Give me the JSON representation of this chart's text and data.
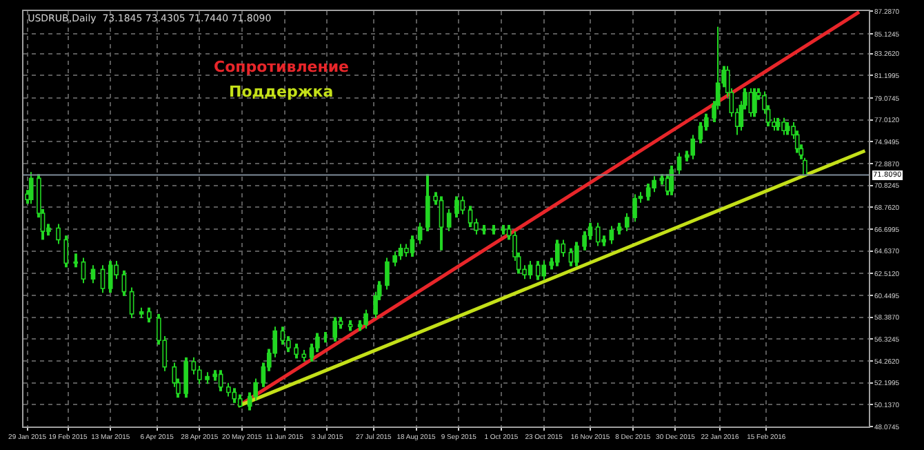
{
  "chart_data": {
    "type": "candlestick",
    "title": "USDRUB,Daily  73.1845 73.4305 71.7440 71.8090",
    "color": "#22d622",
    "legend": false,
    "grid": true,
    "x": [
      "2015-01-29",
      "2015-01-31",
      "2015-02-04",
      "2015-02-06",
      "2015-02-09",
      "2015-02-14",
      "2015-02-18",
      "2015-02-23",
      "2015-02-27",
      "2015-03-04",
      "2015-03-09",
      "2015-03-13",
      "2015-03-16",
      "2015-03-20",
      "2015-03-24",
      "2015-03-29",
      "2015-04-02",
      "2015-04-07",
      "2015-04-10",
      "2015-04-15",
      "2015-04-17",
      "2015-04-21",
      "2015-04-25",
      "2015-04-28",
      "2015-05-02",
      "2015-05-06",
      "2015-05-09",
      "2015-05-13",
      "2015-05-16",
      "2015-05-19",
      "2015-05-24",
      "2015-05-27",
      "2015-05-31",
      "2015-06-03",
      "2015-06-06",
      "2015-06-10",
      "2015-06-13",
      "2015-06-17",
      "2015-06-21",
      "2015-06-25",
      "2015-06-28",
      "2015-07-02",
      "2015-07-07",
      "2015-07-10",
      "2015-07-15",
      "2015-07-20",
      "2015-07-23",
      "2015-07-28",
      "2015-07-30",
      "2015-08-03",
      "2015-08-07",
      "2015-08-10",
      "2015-08-13",
      "2015-08-16",
      "2015-08-20",
      "2015-08-24",
      "2015-08-28",
      "2015-08-31",
      "2015-09-04",
      "2015-09-08",
      "2015-09-11",
      "2015-09-15",
      "2015-09-18",
      "2015-09-22",
      "2015-09-27",
      "2015-10-02",
      "2015-10-05",
      "2015-10-08",
      "2015-10-10",
      "2015-10-13",
      "2015-10-16",
      "2015-10-20",
      "2015-10-23",
      "2015-10-27",
      "2015-10-30",
      "2015-11-02",
      "2015-11-06",
      "2015-11-09",
      "2015-11-13",
      "2015-11-16",
      "2015-11-20",
      "2015-11-23",
      "2015-11-27",
      "2015-12-01",
      "2015-12-05",
      "2015-12-09",
      "2015-12-12",
      "2015-12-16",
      "2015-12-19",
      "2015-12-23",
      "2015-12-26",
      "2015-12-28",
      "2016-01-01",
      "2016-01-05",
      "2016-01-08",
      "2016-01-12",
      "2016-01-15",
      "2016-01-19",
      "2016-01-21",
      "2016-01-24",
      "2016-01-26",
      "2016-01-28",
      "2016-01-31",
      "2016-02-02",
      "2016-02-04",
      "2016-02-07",
      "2016-02-09",
      "2016-02-11",
      "2016-02-14",
      "2016-02-16",
      "2016-02-19",
      "2016-02-21",
      "2016-02-24",
      "2016-02-26",
      "2016-02-29",
      "2016-03-02",
      "2016-03-04",
      "2016-03-06"
    ],
    "ohlc": [
      [
        70.0,
        70.4,
        69.1,
        69.5
      ],
      [
        69.5,
        72.1,
        69.1,
        71.5
      ],
      [
        71.5,
        71.9,
        67.8,
        68.2
      ],
      [
        68.2,
        68.6,
        65.7,
        66.5
      ],
      [
        66.5,
        67.2,
        66.1,
        66.8
      ],
      [
        66.8,
        67.2,
        65.3,
        65.7
      ],
      [
        65.7,
        66.1,
        63.1,
        63.5
      ],
      [
        63.5,
        64.4,
        63.1,
        63.6
      ],
      [
        63.6,
        64.0,
        61.6,
        62.0
      ],
      [
        62.0,
        63.3,
        61.6,
        62.9
      ],
      [
        62.9,
        63.3,
        60.7,
        61.1
      ],
      [
        61.1,
        63.7,
        60.7,
        63.3
      ],
      [
        63.3,
        63.7,
        62.0,
        62.4
      ],
      [
        62.4,
        62.8,
        60.4,
        60.8
      ],
      [
        60.8,
        61.2,
        58.3,
        58.7
      ],
      [
        58.7,
        59.3,
        58.3,
        58.9
      ],
      [
        58.9,
        59.3,
        57.9,
        58.3
      ],
      [
        58.3,
        58.7,
        55.8,
        56.2
      ],
      [
        56.2,
        56.6,
        53.3,
        53.7
      ],
      [
        53.7,
        54.1,
        51.8,
        52.2
      ],
      [
        52.2,
        52.6,
        50.8,
        51.2
      ],
      [
        51.2,
        54.6,
        50.8,
        54.2
      ],
      [
        54.2,
        54.6,
        53.0,
        53.4
      ],
      [
        53.4,
        53.8,
        52.1,
        52.5
      ],
      [
        52.5,
        53.2,
        52.1,
        52.8
      ],
      [
        52.8,
        53.4,
        52.4,
        53.0
      ],
      [
        53.0,
        53.4,
        51.4,
        51.8
      ],
      [
        51.8,
        52.2,
        50.9,
        51.3
      ],
      [
        51.3,
        51.7,
        50.3,
        50.7
      ],
      [
        50.7,
        51.1,
        49.9,
        50.0
      ],
      [
        50.0,
        51.3,
        49.6,
        50.9
      ],
      [
        50.9,
        52.6,
        50.5,
        52.2
      ],
      [
        52.2,
        54.1,
        51.8,
        53.7
      ],
      [
        53.7,
        55.4,
        53.3,
        55.0
      ],
      [
        55.0,
        57.5,
        54.6,
        57.1
      ],
      [
        57.1,
        57.5,
        55.8,
        56.2
      ],
      [
        56.2,
        56.6,
        55.1,
        55.5
      ],
      [
        55.5,
        55.9,
        54.5,
        54.9
      ],
      [
        54.9,
        55.3,
        54.2,
        54.6
      ],
      [
        54.6,
        55.9,
        54.2,
        55.5
      ],
      [
        55.5,
        56.9,
        55.1,
        56.5
      ],
      [
        56.5,
        57.0,
        56.0,
        56.5
      ],
      [
        56.5,
        58.4,
        56.1,
        58.0
      ],
      [
        58.0,
        58.4,
        57.3,
        57.7
      ],
      [
        57.7,
        58.1,
        57.1,
        57.5
      ],
      [
        57.5,
        58.1,
        57.1,
        57.7
      ],
      [
        57.7,
        59.1,
        57.3,
        58.7
      ],
      [
        58.7,
        60.8,
        58.3,
        60.4
      ],
      [
        60.4,
        61.8,
        60.0,
        61.4
      ],
      [
        61.4,
        64.0,
        61.0,
        63.6
      ],
      [
        63.6,
        64.6,
        63.2,
        64.2
      ],
      [
        64.2,
        65.3,
        63.8,
        64.9
      ],
      [
        64.9,
        65.3,
        64.1,
        64.5
      ],
      [
        64.5,
        66.1,
        64.1,
        65.7
      ],
      [
        65.7,
        67.3,
        65.3,
        66.9
      ],
      [
        66.9,
        71.9,
        66.5,
        69.8
      ],
      [
        69.8,
        70.2,
        69.0,
        69.4
      ],
      [
        69.4,
        69.8,
        64.7,
        66.9
      ],
      [
        66.9,
        68.6,
        66.5,
        68.2
      ],
      [
        68.2,
        69.8,
        67.8,
        69.4
      ],
      [
        69.4,
        69.8,
        68.1,
        68.5
      ],
      [
        68.5,
        68.9,
        66.9,
        67.3
      ],
      [
        67.3,
        67.7,
        66.2,
        66.6
      ],
      [
        66.6,
        67.1,
        66.2,
        66.7
      ],
      [
        66.7,
        67.1,
        66.2,
        66.6
      ],
      [
        66.6,
        67.1,
        66.2,
        66.7
      ],
      [
        66.7,
        67.1,
        65.7,
        66.1
      ],
      [
        66.1,
        66.5,
        63.7,
        64.1
      ],
      [
        64.1,
        64.5,
        62.5,
        62.9
      ],
      [
        62.9,
        63.3,
        62.0,
        62.4
      ],
      [
        62.4,
        63.7,
        62.0,
        63.3
      ],
      [
        63.3,
        63.7,
        61.9,
        62.3
      ],
      [
        62.3,
        63.7,
        61.9,
        63.3
      ],
      [
        63.3,
        64.0,
        62.9,
        63.6
      ],
      [
        63.6,
        65.7,
        63.2,
        65.3
      ],
      [
        65.3,
        65.7,
        64.1,
        64.5
      ],
      [
        64.5,
        64.9,
        63.2,
        63.6
      ],
      [
        63.6,
        65.5,
        63.2,
        65.1
      ],
      [
        65.1,
        66.5,
        64.7,
        66.1
      ],
      [
        66.1,
        67.3,
        65.7,
        66.9
      ],
      [
        66.9,
        67.3,
        65.1,
        65.5
      ],
      [
        65.5,
        66.1,
        65.1,
        65.7
      ],
      [
        65.7,
        67.0,
        65.3,
        66.6
      ],
      [
        66.6,
        67.3,
        66.2,
        66.9
      ],
      [
        66.9,
        68.2,
        66.5,
        67.8
      ],
      [
        67.8,
        70.0,
        67.4,
        69.6
      ],
      [
        69.6,
        70.2,
        69.2,
        69.8
      ],
      [
        69.8,
        71.0,
        69.4,
        70.6
      ],
      [
        70.6,
        71.7,
        70.2,
        71.3
      ],
      [
        71.3,
        71.9,
        70.9,
        71.5
      ],
      [
        71.5,
        71.9,
        69.9,
        70.3
      ],
      [
        70.3,
        72.7,
        69.9,
        72.3
      ],
      [
        72.3,
        73.9,
        71.9,
        73.5
      ],
      [
        73.5,
        74.1,
        73.1,
        73.7
      ],
      [
        73.7,
        75.6,
        73.3,
        75.2
      ],
      [
        75.2,
        76.8,
        74.8,
        76.4
      ],
      [
        76.4,
        77.6,
        76.0,
        77.2
      ],
      [
        77.2,
        78.8,
        76.8,
        78.4
      ],
      [
        78.4,
        85.8,
        78.0,
        80.5
      ],
      [
        80.5,
        82.1,
        80.1,
        81.7
      ],
      [
        81.7,
        82.1,
        79.2,
        79.6
      ],
      [
        79.6,
        80.0,
        77.3,
        77.7
      ],
      [
        77.7,
        78.1,
        75.6,
        76.4
      ],
      [
        76.4,
        78.8,
        76.0,
        78.4
      ],
      [
        78.4,
        80.0,
        78.0,
        79.6
      ],
      [
        79.6,
        80.0,
        77.3,
        77.7
      ],
      [
        77.7,
        80.0,
        77.3,
        79.6
      ],
      [
        79.6,
        80.0,
        78.9,
        79.3
      ],
      [
        79.3,
        79.7,
        77.6,
        78.0
      ],
      [
        78.0,
        78.4,
        76.4,
        76.8
      ],
      [
        76.8,
        77.2,
        76.0,
        76.4
      ],
      [
        76.4,
        77.2,
        76.0,
        76.8
      ],
      [
        76.8,
        77.2,
        75.6,
        76.0
      ],
      [
        76.0,
        76.8,
        75.6,
        76.4
      ],
      [
        76.4,
        76.8,
        75.2,
        75.6
      ],
      [
        75.6,
        76.0,
        73.9,
        74.3
      ],
      [
        74.3,
        74.7,
        73.3,
        73.7
      ],
      [
        73.1845,
        73.4305,
        71.744,
        71.809
      ]
    ],
    "series": [
      {
        "type": "line",
        "name": "Сопротивление",
        "color": "#e8262a",
        "x": [
          "2015-05-18",
          "2016-04-03"
        ],
        "values": [
          50.0,
          87.2
        ]
      },
      {
        "type": "line",
        "name": "Поддержка",
        "color": "#c4e019",
        "x": [
          "2015-05-18",
          "2016-04-06"
        ],
        "values": [
          50.0,
          74.1
        ]
      }
    ],
    "ref_lines": [
      {
        "axis": "y",
        "value": 71.809,
        "label": "71.8090",
        "color": "#7f8c99"
      }
    ],
    "xlim": [
      "2015-01-27",
      "2016-04-08"
    ],
    "xticks": [
      {
        "value": "2015-01-29",
        "label": "29 Jan 2015"
      },
      {
        "value": "2015-02-19",
        "label": "19 Feb 2015"
      },
      {
        "value": "2015-03-13",
        "label": "13 Mar 2015"
      },
      {
        "value": "2015-04-06",
        "label": "6 Apr 2015"
      },
      {
        "value": "2015-04-28",
        "label": "28 Apr 2015"
      },
      {
        "value": "2015-05-20",
        "label": "20 May 2015"
      },
      {
        "value": "2015-06-11",
        "label": "11 Jun 2015"
      },
      {
        "value": "2015-07-03",
        "label": "3 Jul 2015"
      },
      {
        "value": "2015-07-27",
        "label": "27 Jul 2015"
      },
      {
        "value": "2015-08-18",
        "label": "18 Aug 2015"
      },
      {
        "value": "2015-09-09",
        "label": "9 Sep 2015"
      },
      {
        "value": "2015-10-01",
        "label": "1 Oct 2015"
      },
      {
        "value": "2015-10-23",
        "label": "23 Oct 2015"
      },
      {
        "value": "2015-11-16",
        "label": "16 Nov 2015"
      },
      {
        "value": "2015-12-08",
        "label": "8 Dec 2015"
      },
      {
        "value": "2015-12-30",
        "label": "30 Dec 2015"
      },
      {
        "value": "2016-01-22",
        "label": "22 Jan 2016"
      },
      {
        "value": "2016-02-15",
        "label": "15 Feb 2016"
      }
    ],
    "ylim": [
      48.0745,
      87.287
    ],
    "yticks": [
      {
        "value": 87.287,
        "label": "87.2870"
      },
      85.1245,
      {
        "value": 83.262,
        "label": "83.2620"
      },
      81.1995,
      79.0745,
      {
        "value": 77.012,
        "label": "77.0120"
      },
      74.9495,
      {
        "value": 72.887,
        "label": "72.8870"
      },
      70.8245,
      {
        "value": 68.762,
        "label": "68.7620"
      },
      66.6995,
      {
        "value": 64.637,
        "label": "64.6370"
      },
      {
        "value": 62.512,
        "label": "62.5120"
      },
      60.4495,
      {
        "value": 58.387,
        "label": "58.3870"
      },
      56.3245,
      {
        "value": 54.262,
        "label": "54.2620"
      },
      52.1995,
      {
        "value": 50.137,
        "label": "50.1370"
      },
      48.0745
    ]
  }
}
